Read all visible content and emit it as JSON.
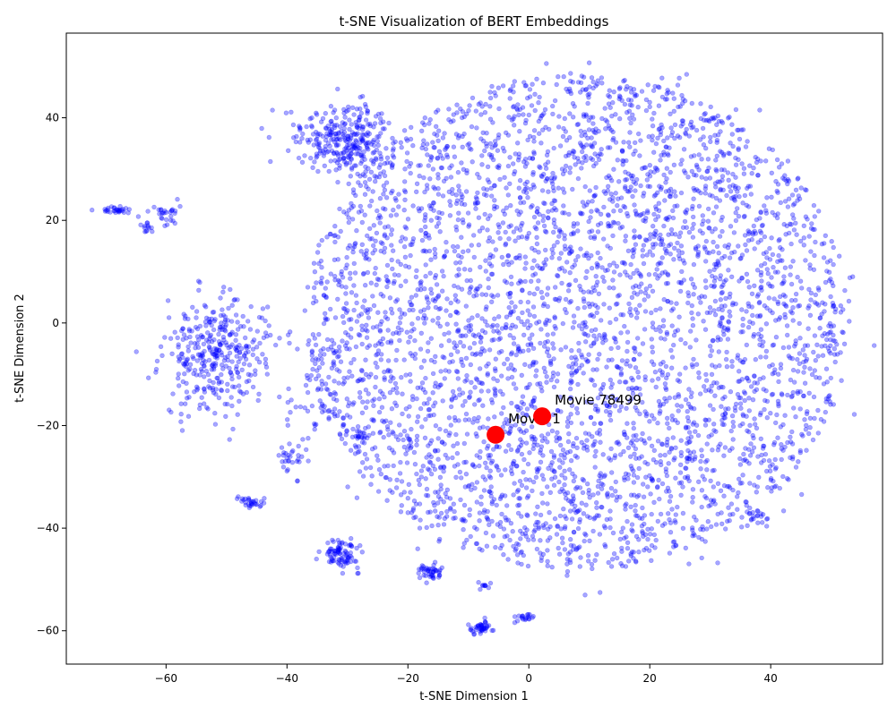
{
  "chart_data": {
    "type": "scatter",
    "title": "t-SNE Visualization of BERT Embeddings",
    "xlabel": "t-SNE Dimension 1",
    "ylabel": "t-SNE Dimension 2",
    "xlim": [
      -76.5,
      58.5
    ],
    "ylim": [
      -66.5,
      56.5
    ],
    "xticks": [
      -60,
      -40,
      -20,
      0,
      20,
      40
    ],
    "yticks": [
      -60,
      -40,
      -20,
      0,
      20,
      40
    ],
    "xtick_labels": [
      "−60",
      "−40",
      "−20",
      "0",
      "20",
      "40"
    ],
    "ytick_labels": [
      "−60",
      "−40",
      "−20",
      "0",
      "20",
      "40"
    ],
    "grid": false,
    "legend": "none",
    "point_color": "#0000ff",
    "point_alpha": 0.35,
    "highlight_color": "#ff0000",
    "clusters": [
      {
        "cx": 8,
        "cy": 0,
        "sx": 22,
        "sy": 22,
        "n": 4200,
        "shape": "disc"
      },
      {
        "cx": -52,
        "cy": -7,
        "sx": 4.2,
        "sy": 5.5,
        "n": 330,
        "shape": "gauss"
      },
      {
        "cx": -31,
        "cy": 37,
        "sx": 4.5,
        "sy": 2.8,
        "n": 220,
        "shape": "gauss"
      },
      {
        "cx": -29,
        "cy": 33,
        "sx": 3,
        "sy": 2,
        "n": 80,
        "shape": "gauss"
      },
      {
        "cx": -31,
        "cy": -45,
        "sx": 1.4,
        "sy": 1.4,
        "n": 90,
        "shape": "gauss"
      },
      {
        "cx": -16.5,
        "cy": -48.5,
        "sx": 1,
        "sy": 0.8,
        "n": 45,
        "shape": "gauss"
      },
      {
        "cx": -8,
        "cy": -59.5,
        "sx": 1,
        "sy": 0.6,
        "n": 45,
        "shape": "gauss"
      },
      {
        "cx": -0.5,
        "cy": -57.5,
        "sx": 0.9,
        "sy": 0.5,
        "n": 20,
        "shape": "gauss"
      },
      {
        "cx": -7,
        "cy": -51,
        "sx": 0.6,
        "sy": 0.4,
        "n": 10,
        "shape": "gauss"
      },
      {
        "cx": -46,
        "cy": -35,
        "sx": 1.3,
        "sy": 0.6,
        "n": 30,
        "shape": "gauss"
      },
      {
        "cx": -39,
        "cy": -26,
        "sx": 1.2,
        "sy": 1.2,
        "n": 25,
        "shape": "gauss"
      },
      {
        "cx": -28.5,
        "cy": -22,
        "sx": 0.6,
        "sy": 0.8,
        "n": 15,
        "shape": "gauss"
      },
      {
        "cx": -68.5,
        "cy": 22,
        "sx": 1.2,
        "sy": 0.3,
        "n": 30,
        "shape": "gauss"
      },
      {
        "cx": -60.5,
        "cy": 21,
        "sx": 1.4,
        "sy": 1.2,
        "n": 30,
        "shape": "gauss"
      },
      {
        "cx": -63,
        "cy": 18.5,
        "sx": 0.8,
        "sy": 0.7,
        "n": 12,
        "shape": "gauss"
      },
      {
        "cx": 38,
        "cy": -38,
        "sx": 0.8,
        "sy": 1.2,
        "n": 20,
        "shape": "gauss"
      },
      {
        "cx": -45,
        "cy": 0,
        "sx": 3,
        "sy": 3,
        "n": 25,
        "shape": "gauss"
      },
      {
        "cx": -36,
        "cy": -15,
        "sx": 3,
        "sy": 8,
        "n": 40,
        "shape": "gauss"
      }
    ],
    "highlights": [
      {
        "label": "Movie 1",
        "x": -5.5,
        "y": -21.8
      },
      {
        "label": "Movie 78499",
        "x": 2.2,
        "y": -18.2
      }
    ]
  }
}
